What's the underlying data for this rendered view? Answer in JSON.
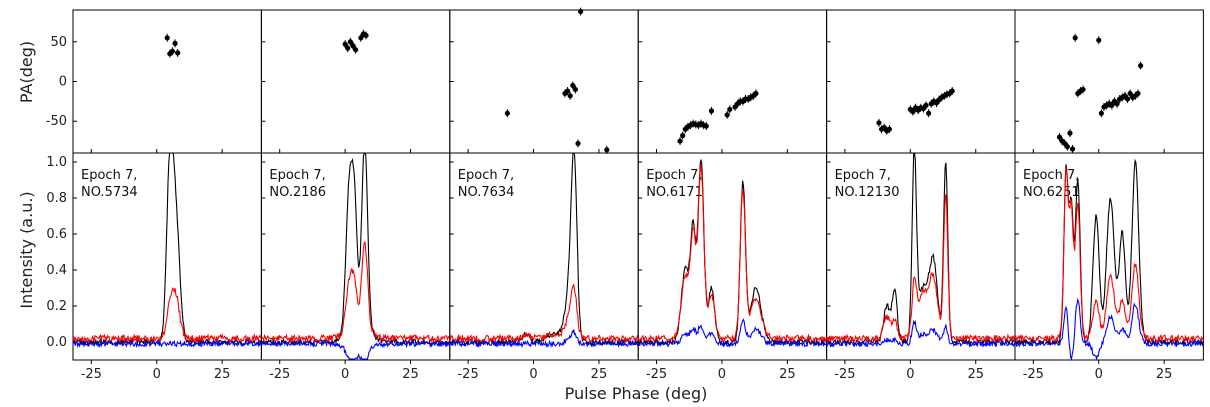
{
  "chart_data": {
    "type": "line",
    "xlabel": "Pulse Phase (deg)",
    "ylabel_top": "PA(deg)",
    "ylabel_bottom": "Intensity (a.u.)",
    "xlim": [
      -32,
      40
    ],
    "xticks": [
      -25,
      0,
      25
    ],
    "pa_ylim": [
      -90,
      90
    ],
    "pa_yticks": [
      50,
      0,
      -50
    ],
    "intensity_ylim": [
      -0.1,
      1.05
    ],
    "intensity_yticks": [
      1.0,
      0.8,
      0.6,
      0.4,
      0.2,
      0.0
    ],
    "series_colors": {
      "total": "#000000",
      "linear": "#ff0000",
      "circular": "#0000ff"
    },
    "panels": [
      {
        "label_line1": "Epoch 7,",
        "label_line2": "NO.5734",
        "pa_points": [
          [
            4,
            55
          ],
          [
            5,
            35
          ],
          [
            6,
            38
          ],
          [
            7,
            48
          ],
          [
            8,
            36
          ]
        ],
        "components": [
          {
            "center": 5,
            "width": 1.2,
            "total": 0.97,
            "linear": 0.17,
            "circular": 0.0
          },
          {
            "center": 7.2,
            "width": 1.3,
            "total": 0.66,
            "linear": 0.22,
            "circular": 0.0
          },
          {
            "center": 9,
            "width": 1.0,
            "total": 0.1,
            "linear": 0.03,
            "circular": 0.0
          }
        ]
      },
      {
        "label_line1": "Epoch 7,",
        "label_line2": "NO.2186",
        "pa_points": [
          [
            0,
            47
          ],
          [
            1,
            42
          ],
          [
            2,
            50
          ],
          [
            3,
            45
          ],
          [
            4,
            40
          ],
          [
            6,
            55
          ],
          [
            7,
            60
          ],
          [
            8,
            58
          ]
        ],
        "components": [
          {
            "center": 1.5,
            "width": 1.2,
            "total": 0.75,
            "linear": 0.25,
            "circular": -0.05
          },
          {
            "center": 3.5,
            "width": 1.0,
            "total": 0.6,
            "linear": 0.2,
            "circular": -0.03
          },
          {
            "center": 7.5,
            "width": 1.1,
            "total": 1.0,
            "linear": 0.45,
            "circular": -0.08
          },
          {
            "center": 5,
            "width": 3.5,
            "total": 0.15,
            "linear": 0.1,
            "circular": -0.05
          }
        ]
      },
      {
        "label_line1": "Epoch 7,",
        "label_line2": "NO.7634",
        "pa_points": [
          [
            -10,
            -40
          ],
          [
            12,
            -15
          ],
          [
            13,
            -12
          ],
          [
            14,
            -18
          ],
          [
            15,
            -5
          ],
          [
            16,
            -10
          ],
          [
            17,
            -78
          ],
          [
            18,
            88
          ],
          [
            28,
            -86
          ]
        ],
        "components": [
          {
            "center": 15.5,
            "width": 1.1,
            "total": 0.98,
            "linear": 0.25,
            "circular": 0.06
          },
          {
            "center": 13.5,
            "width": 1.5,
            "total": 0.25,
            "linear": 0.1,
            "circular": 0.02
          },
          {
            "center": -3,
            "width": 1.5,
            "total": 0.04,
            "linear": 0.02,
            "circular": 0.0
          },
          {
            "center": 8,
            "width": 3,
            "total": 0.05,
            "linear": 0.02,
            "circular": 0.0
          }
        ]
      },
      {
        "label_line1": "Epoch 7,",
        "label_line2": "NO.6171",
        "pa_points": [
          [
            -16,
            -75
          ],
          [
            -15,
            -68
          ],
          [
            -14,
            -60
          ],
          [
            -13,
            -57
          ],
          [
            -12,
            -55
          ],
          [
            -11,
            -53
          ],
          [
            -10,
            -54
          ],
          [
            -9,
            -55
          ],
          [
            -8,
            -53
          ],
          [
            -7,
            -55
          ],
          [
            -6,
            -56
          ],
          [
            -4,
            -37
          ],
          [
            2,
            -42
          ],
          [
            3,
            -35
          ],
          [
            5,
            -32
          ],
          [
            6,
            -28
          ],
          [
            7,
            -25
          ],
          [
            8,
            -25
          ],
          [
            9,
            -22
          ],
          [
            10,
            -22
          ],
          [
            11,
            -20
          ],
          [
            12,
            -18
          ],
          [
            13,
            -15
          ]
        ],
        "components": [
          {
            "center": -14,
            "width": 1.5,
            "total": 0.4,
            "linear": 0.35,
            "circular": 0.05
          },
          {
            "center": -11,
            "width": 1.0,
            "total": 0.6,
            "linear": 0.55,
            "circular": 0.08
          },
          {
            "center": -8,
            "width": 1.1,
            "total": 1.0,
            "linear": 0.95,
            "circular": 0.1
          },
          {
            "center": -4,
            "width": 1.2,
            "total": 0.3,
            "linear": 0.25,
            "circular": 0.06
          },
          {
            "center": 8,
            "width": 1.0,
            "total": 0.88,
            "linear": 0.82,
            "circular": 0.12
          },
          {
            "center": 13,
            "width": 2.0,
            "total": 0.3,
            "linear": 0.22,
            "circular": 0.08
          }
        ]
      },
      {
        "label_line1": "Epoch 7,",
        "label_line2": "NO.12130",
        "pa_points": [
          [
            -12,
            -52
          ],
          [
            -11,
            -60
          ],
          [
            -10,
            -58
          ],
          [
            -9,
            -62
          ],
          [
            -8,
            -60
          ],
          [
            0,
            -35
          ],
          [
            1,
            -38
          ],
          [
            2,
            -33
          ],
          [
            3,
            -36
          ],
          [
            4,
            -33
          ],
          [
            5,
            -34
          ],
          [
            6,
            -30
          ],
          [
            7,
            -40
          ],
          [
            8,
            -28
          ],
          [
            9,
            -25
          ],
          [
            10,
            -27
          ],
          [
            11,
            -23
          ],
          [
            12,
            -20
          ],
          [
            13,
            -18
          ],
          [
            14,
            -16
          ],
          [
            15,
            -15
          ],
          [
            16,
            -12
          ]
        ],
        "components": [
          {
            "center": -9,
            "width": 1.2,
            "total": 0.2,
            "linear": 0.12,
            "circular": 0.02
          },
          {
            "center": -6,
            "width": 1.0,
            "total": 0.28,
            "linear": 0.1,
            "circular": 0.02
          },
          {
            "center": 1.5,
            "width": 0.8,
            "total": 0.98,
            "linear": 0.25,
            "circular": 0.1
          },
          {
            "center": 5,
            "width": 2.5,
            "total": 0.3,
            "linear": 0.25,
            "circular": 0.05
          },
          {
            "center": 9,
            "width": 1.5,
            "total": 0.38,
            "linear": 0.28,
            "circular": 0.06
          },
          {
            "center": 13.5,
            "width": 0.8,
            "total": 1.0,
            "linear": 0.8,
            "circular": 0.1
          }
        ]
      },
      {
        "label_line1": "Epoch 7,",
        "label_line2": "NO.6251",
        "pa_points": [
          [
            -15,
            -70
          ],
          [
            -14,
            -75
          ],
          [
            -13,
            -78
          ],
          [
            -12,
            -82
          ],
          [
            -11,
            -65
          ],
          [
            -10,
            -85
          ],
          [
            -9,
            55
          ],
          [
            -8,
            -15
          ],
          [
            -7,
            -12
          ],
          [
            -6,
            -10
          ],
          [
            0,
            52
          ],
          [
            1,
            -40
          ],
          [
            2,
            -32
          ],
          [
            3,
            -30
          ],
          [
            4,
            -28
          ],
          [
            5,
            -30
          ],
          [
            6,
            -25
          ],
          [
            7,
            -28
          ],
          [
            8,
            -22
          ],
          [
            9,
            -20
          ],
          [
            10,
            -18
          ],
          [
            11,
            -22
          ],
          [
            12,
            -15
          ],
          [
            13,
            -20
          ],
          [
            14,
            -18
          ],
          [
            15,
            -15
          ],
          [
            16,
            20
          ]
        ],
        "components": [
          {
            "center": -12.5,
            "width": 0.8,
            "total": 0.95,
            "linear": 0.92,
            "circular": 0.2
          },
          {
            "center": -10.5,
            "width": 0.8,
            "total": 0.75,
            "linear": 0.7,
            "circular": -0.1
          },
          {
            "center": -8,
            "width": 0.9,
            "total": 0.9,
            "linear": 0.75,
            "circular": 0.25
          },
          {
            "center": -1,
            "width": 1.2,
            "total": 0.7,
            "linear": 0.2,
            "circular": -0.08
          },
          {
            "center": 4.5,
            "width": 1.5,
            "total": 0.8,
            "linear": 0.35,
            "circular": 0.15
          },
          {
            "center": 9,
            "width": 1.2,
            "total": 0.6,
            "linear": 0.2,
            "circular": 0.08
          },
          {
            "center": 14,
            "width": 1.3,
            "total": 1.0,
            "linear": 0.42,
            "circular": 0.22
          }
        ]
      }
    ]
  }
}
